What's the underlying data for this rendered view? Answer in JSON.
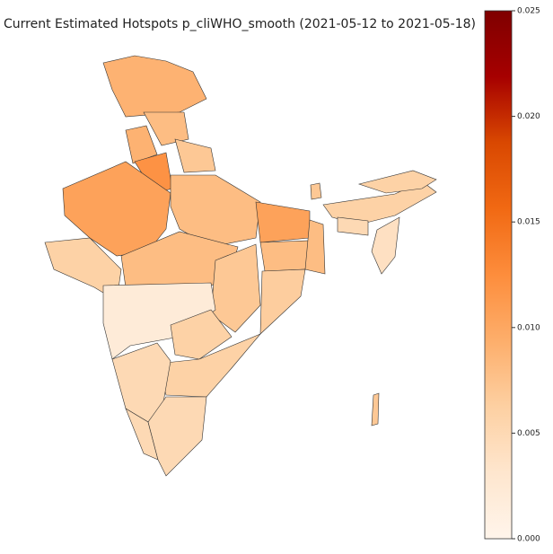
{
  "chart_data": {
    "type": "choropleth",
    "title": "Current Estimated Hotspots p_cliWHO_smooth (2021-05-12 to 2021-05-18)",
    "categories": [
      null,
      null,
      null,
      null,
      null,
      null,
      null,
      null,
      null,
      null,
      null,
      null,
      null,
      null,
      null,
      null,
      null,
      null,
      null,
      null,
      null,
      null,
      null,
      null,
      null,
      null
    ],
    "values": [
      0.009,
      0.008,
      0.009,
      0.007,
      0.012,
      0.0105,
      0.008,
      0.0105,
      0.006,
      0.008,
      0.008,
      0.008,
      0.007,
      0.0065,
      0.002,
      0.006,
      0.006,
      0.005,
      0.005,
      0.005,
      0.006,
      0.006,
      0.005,
      0.004,
      0.007,
      0.007
    ],
    "colormap": [
      "#fff5eb",
      "#fee6ce",
      "#fdd0a2",
      "#fdae6b",
      "#fd8d3c",
      "#f16913",
      "#d94801",
      "#a60000",
      "#7f0000"
    ],
    "clim": [
      0,
      0.025
    ],
    "cticks": [
      {
        "value": 0,
        "label": "0.000"
      },
      {
        "value": 0.005,
        "label": "0.005"
      },
      {
        "value": 0.01,
        "label": "0.010"
      },
      {
        "value": 0.015,
        "label": "0.015"
      },
      {
        "value": 0.02,
        "label": "0.020"
      },
      {
        "value": 0.025,
        "label": "0.025"
      }
    ]
  }
}
